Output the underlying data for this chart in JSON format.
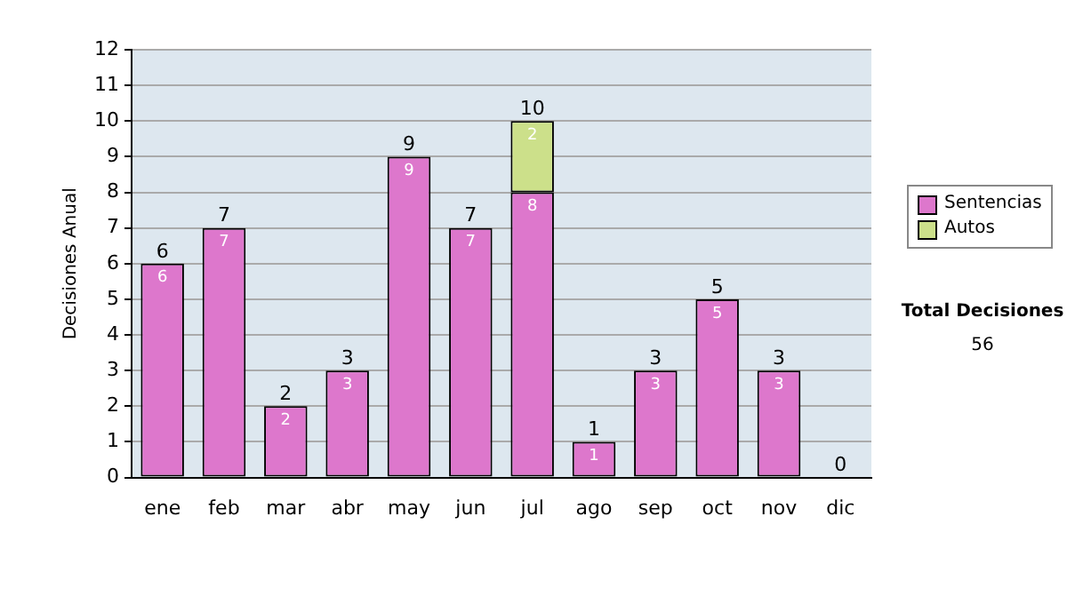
{
  "chart_data": {
    "type": "bar",
    "stacked": true,
    "ylabel": "Decisiones Anual",
    "categories": [
      "ene",
      "feb",
      "mar",
      "abr",
      "may",
      "jun",
      "jul",
      "ago",
      "sep",
      "oct",
      "nov",
      "dic"
    ],
    "series": [
      {
        "name": "Sentencias",
        "color": "#dd77cc",
        "values": [
          6,
          7,
          2,
          3,
          9,
          7,
          8,
          1,
          3,
          5,
          3,
          0
        ],
        "value_labels": [
          "6",
          "7",
          "2",
          "3",
          "9",
          "7",
          "8",
          "1",
          "3",
          "5",
          "3",
          null
        ]
      },
      {
        "name": "Autos",
        "color": "#cce08a",
        "values": [
          0,
          0,
          0,
          0,
          0,
          0,
          2,
          0,
          0,
          0,
          0,
          0
        ],
        "value_labels": [
          null,
          null,
          null,
          null,
          null,
          null,
          "2",
          null,
          null,
          null,
          null,
          null
        ]
      }
    ],
    "totals": [
      "6",
      "7",
      "2",
      "3",
      "9",
      "7",
      "10",
      "1",
      "3",
      "5",
      "3",
      "0"
    ],
    "ylim": [
      0,
      12
    ],
    "yticks": [
      0,
      1,
      2,
      3,
      4,
      5,
      6,
      7,
      8,
      9,
      10,
      11,
      12
    ],
    "grid": "y",
    "legend": "right",
    "annotations": [
      "Total Decisiones",
      "56"
    ]
  }
}
